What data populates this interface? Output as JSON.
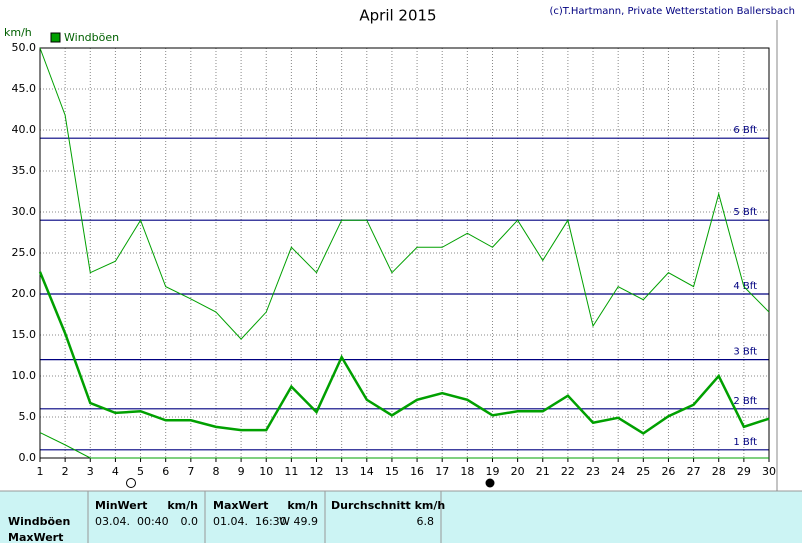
{
  "chart_data": {
    "type": "line",
    "title": "April 2015",
    "credit": "(c)T.Hartmann, Private Wetterstation Ballersbach",
    "y_label": "km/h",
    "x": [
      1,
      2,
      3,
      4,
      5,
      6,
      7,
      8,
      9,
      10,
      11,
      12,
      13,
      14,
      15,
      16,
      17,
      18,
      19,
      20,
      21,
      22,
      23,
      24,
      25,
      26,
      27,
      28,
      29,
      30
    ],
    "xlim": [
      1,
      30
    ],
    "xticks": [
      1,
      2,
      3,
      4,
      5,
      6,
      7,
      8,
      9,
      10,
      11,
      12,
      13,
      14,
      15,
      16,
      17,
      18,
      19,
      20,
      21,
      22,
      23,
      24,
      25,
      26,
      27,
      28,
      29,
      30
    ],
    "ylim": [
      0,
      50
    ],
    "yticks": [
      {
        "value": 0,
        "label": "0.0"
      },
      {
        "value": 5,
        "label": "5.0"
      },
      {
        "value": 10,
        "label": "10.0"
      },
      {
        "value": 15,
        "label": "15.0"
      },
      {
        "value": 20,
        "label": "20.0"
      },
      {
        "value": 25,
        "label": "25.0"
      },
      {
        "value": 30,
        "label": "30.0"
      },
      {
        "value": 35,
        "label": "35.0"
      },
      {
        "value": 40,
        "label": "40.0"
      },
      {
        "value": 45,
        "label": "45.0"
      },
      {
        "value": 50,
        "label": "50.0"
      }
    ],
    "grid": true,
    "legend": "top-left",
    "series": [
      {
        "name": "Windböen",
        "color": "#00a000",
        "values": [
          22.7,
          15.2,
          6.7,
          5.5,
          5.7,
          4.6,
          4.6,
          3.8,
          3.4,
          3.4,
          8.7,
          5.6,
          12.3,
          7.1,
          5.2,
          7.1,
          7.9,
          7.1,
          5.2,
          5.7,
          5.7,
          7.6,
          4.3,
          4.9,
          3.0,
          5.1,
          6.5,
          10.0,
          3.8,
          4.8
        ],
        "max": [
          50.0,
          41.8,
          22.6,
          24.0,
          29.0,
          20.9,
          19.4,
          17.8,
          14.5,
          17.8,
          25.7,
          22.6,
          29.0,
          29.0,
          22.6,
          25.7,
          25.7,
          27.4,
          25.7,
          29.0,
          24.1,
          29.0,
          16.1,
          20.9,
          19.3,
          22.6,
          20.9,
          32.2,
          20.9,
          17.8
        ],
        "min": [
          3.1,
          1.6,
          0,
          0,
          0,
          0,
          0,
          0,
          0,
          0,
          0,
          0,
          0,
          0,
          0,
          0,
          0,
          0,
          0,
          0,
          0,
          0,
          0,
          0,
          0,
          0,
          0,
          0,
          0,
          0
        ]
      }
    ],
    "bft_lines": [
      {
        "value": 1,
        "label": "1 Bft"
      },
      {
        "value": 6,
        "label": "2 Bft"
      },
      {
        "value": 12,
        "label": "3 Bft"
      },
      {
        "value": 20,
        "label": "4 Bft"
      },
      {
        "value": 29,
        "label": "5 Bft"
      },
      {
        "value": 39,
        "label": "6 Bft"
      }
    ],
    "bft_color": "#000080"
  },
  "table": {
    "headers": [
      "MinWert",
      "km/h",
      "MaxWert",
      "km/h",
      "Durchschnitt km/h"
    ],
    "rows": [
      [
        "Windböen",
        "03.04.  00:40",
        "0.0",
        "01.04.  16:30",
        "W 49.9",
        "6.8"
      ],
      [
        "MaxWert"
      ]
    ]
  }
}
